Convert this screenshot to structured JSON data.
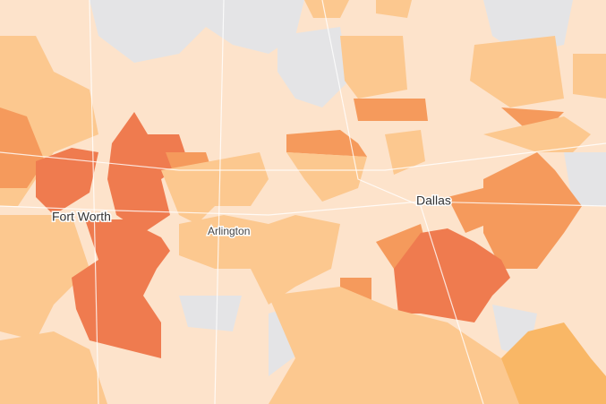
{
  "labels": {
    "fort_worth": "Fort Worth",
    "arlington": "Arlington",
    "dallas": "Dallas"
  }
}
